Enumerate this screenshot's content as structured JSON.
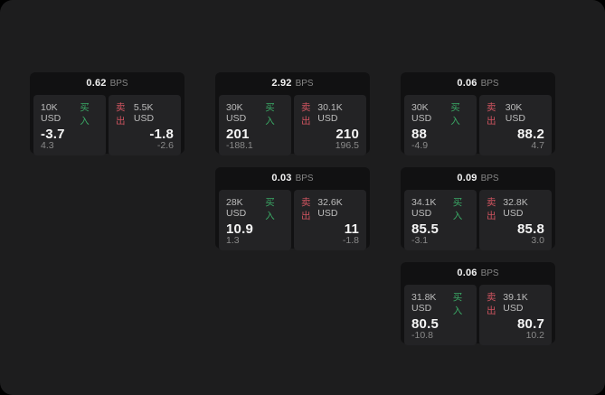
{
  "window": {
    "background": "#1d1d1e",
    "outside_background": "#000000"
  },
  "labels": {
    "bps_unit": "BPS",
    "buy": "买入",
    "sell": "卖出"
  },
  "colors": {
    "buy_green": "#3aa865",
    "sell_red": "#cf5460",
    "card_background": "#111112",
    "panel_background": "#232325",
    "value_white": "#f5f5f5",
    "muted_gray": "#8a8a8a",
    "amount_gray": "#bdbdbd"
  },
  "cards": [
    {
      "col": 1,
      "row": 1,
      "bps": "0.62",
      "buy": {
        "amount": "10K USD",
        "value": "-3.7",
        "sub": "4.3"
      },
      "sell": {
        "amount": "5.5K USD",
        "value": "-1.8",
        "sub": "-2.6"
      }
    },
    {
      "col": 2,
      "row": 1,
      "bps": "2.92",
      "buy": {
        "amount": "30K USD",
        "value": "201",
        "sub": "-188.1"
      },
      "sell": {
        "amount": "30.1K USD",
        "value": "210",
        "sub": "196.5"
      }
    },
    {
      "col": 3,
      "row": 1,
      "bps": "0.06",
      "buy": {
        "amount": "30K USD",
        "value": "88",
        "sub": "-4.9"
      },
      "sell": {
        "amount": "30K USD",
        "value": "88.2",
        "sub": "4.7"
      }
    },
    {
      "col": 2,
      "row": 2,
      "bps": "0.03",
      "buy": {
        "amount": "28K USD",
        "value": "10.9",
        "sub": "1.3"
      },
      "sell": {
        "amount": "32.6K USD",
        "value": "11",
        "sub": "-1.8"
      }
    },
    {
      "col": 3,
      "row": 2,
      "bps": "0.09",
      "buy": {
        "amount": "34.1K USD",
        "value": "85.5",
        "sub": "-3.1"
      },
      "sell": {
        "amount": "32.8K USD",
        "value": "85.8",
        "sub": "3.0"
      }
    },
    {
      "col": 3,
      "row": 3,
      "bps": "0.06",
      "buy": {
        "amount": "31.8K USD",
        "value": "80.5",
        "sub": "-10.8"
      },
      "sell": {
        "amount": "39.1K USD",
        "value": "80.7",
        "sub": "10.2"
      }
    }
  ]
}
